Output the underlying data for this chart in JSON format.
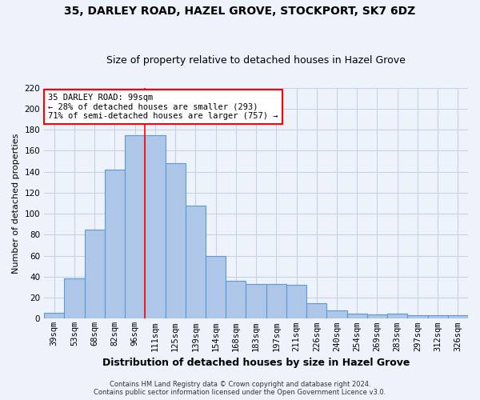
{
  "title": "35, DARLEY ROAD, HAZEL GROVE, STOCKPORT, SK7 6DZ",
  "subtitle": "Size of property relative to detached houses in Hazel Grove",
  "xlabel": "Distribution of detached houses by size in Hazel Grove",
  "ylabel": "Number of detached properties",
  "footer1": "Contains HM Land Registry data © Crown copyright and database right 2024.",
  "footer2": "Contains public sector information licensed under the Open Government Licence v3.0.",
  "categories": [
    "39sqm",
    "53sqm",
    "68sqm",
    "82sqm",
    "96sqm",
    "111sqm",
    "125sqm",
    "139sqm",
    "154sqm",
    "168sqm",
    "183sqm",
    "197sqm",
    "211sqm",
    "226sqm",
    "240sqm",
    "254sqm",
    "269sqm",
    "283sqm",
    "297sqm",
    "312sqm",
    "326sqm"
  ],
  "values": [
    6,
    38,
    85,
    142,
    175,
    175,
    148,
    108,
    60,
    36,
    33,
    33,
    32,
    15,
    8,
    5,
    4,
    5,
    3,
    3,
    3
  ],
  "bar_color": "#aec6e8",
  "bar_edge_color": "#5b9bd5",
  "background_color": "#eef2fb",
  "grid_color": "#c8d0e8",
  "annotation_line1": "35 DARLEY ROAD: 99sqm",
  "annotation_line2": "← 28% of detached houses are smaller (293)",
  "annotation_line3": "71% of semi-detached houses are larger (757) →",
  "annotation_box_color": "white",
  "annotation_box_edge": "red",
  "red_line_x": 4.5,
  "ylim": [
    0,
    220
  ],
  "yticks": [
    0,
    20,
    40,
    60,
    80,
    100,
    120,
    140,
    160,
    180,
    200,
    220
  ],
  "title_fontsize": 10,
  "subtitle_fontsize": 9,
  "ylabel_fontsize": 8,
  "xlabel_fontsize": 9,
  "tick_fontsize": 7.5
}
